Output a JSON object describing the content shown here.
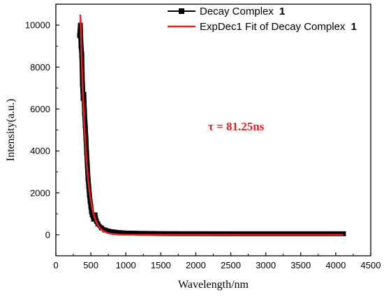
{
  "chart_data": {
    "type": "line",
    "title": "",
    "xlabel": "Wavelength/nm",
    "ylabel": "Intensity(a.u.)",
    "xlim": [
      0,
      4500
    ],
    "ylim": [
      -1000,
      11000
    ],
    "x_ticks": [
      0,
      500,
      1000,
      1500,
      2000,
      2500,
      3000,
      3500,
      4000,
      4500
    ],
    "y_ticks": [
      0,
      2000,
      4000,
      6000,
      8000,
      10000
    ],
    "grid": false,
    "legend_position": "top-right",
    "series": [
      {
        "name": "Decay Complex",
        "name_suffix": "1",
        "color": "#000000",
        "marker": "square",
        "x": [
          340,
          350,
          360,
          370,
          380,
          390,
          400,
          410,
          420,
          430,
          440,
          450,
          460,
          470,
          480,
          490,
          500,
          510,
          520,
          540,
          560,
          580,
          600,
          650,
          700,
          800,
          900,
          1000,
          1200,
          1500,
          2000,
          2500,
          3000,
          3500,
          4000,
          4110
        ],
        "y": [
          9500,
          10000,
          9000,
          8600,
          7200,
          6500,
          6700,
          5800,
          5200,
          4600,
          3900,
          3300,
          2700,
          2300,
          1900,
          1600,
          1350,
          1100,
          950,
          750,
          950,
          650,
          520,
          330,
          230,
          150,
          110,
          90,
          70,
          60,
          55,
          50,
          50,
          50,
          50,
          50
        ]
      },
      {
        "name": "ExpDec1 Fit of Decay Complex",
        "name_suffix": "1",
        "color": "#e8201f",
        "marker": "none",
        "x": [
          350,
          360,
          370,
          380,
          390,
          400,
          420,
          440,
          460,
          480,
          500,
          520,
          540,
          560,
          580,
          600,
          650,
          700,
          750,
          800,
          900,
          1000,
          1200,
          1500,
          2000,
          3000,
          4000,
          4110
        ],
        "y": [
          10500,
          9300,
          8200,
          7250,
          6400,
          5650,
          4400,
          3420,
          2660,
          2070,
          1610,
          1250,
          975,
          760,
          590,
          460,
          250,
          140,
          80,
          45,
          15,
          5,
          0,
          0,
          0,
          0,
          0,
          0
        ]
      }
    ],
    "annotations": [
      {
        "text": "τ = 81.25ns",
        "color": "#e8201f"
      }
    ]
  }
}
